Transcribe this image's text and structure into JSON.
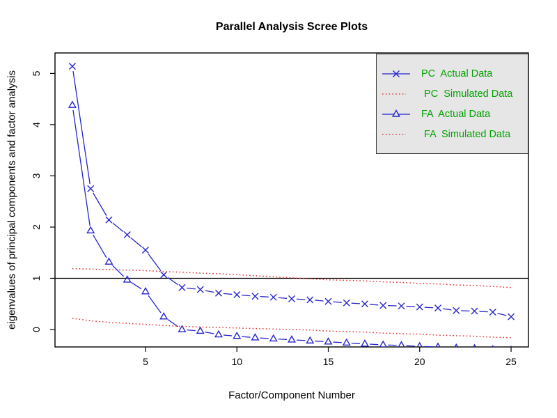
{
  "title": "Parallel Analysis Scree Plots",
  "colors": {
    "actual_line": "#2424cc",
    "simulated_line": "#e83333",
    "legend_text": "#00a300",
    "legend_bg": "#e6e6e6",
    "axis": "#000000",
    "reference_line": "#000000"
  },
  "chart_data": {
    "type": "line",
    "title": "Parallel Analysis Scree Plots",
    "xlabel": "Factor/Component Number",
    "ylabel": "eigenvalues of principal components and factor analysis",
    "xlim": [
      0.05,
      25.95
    ],
    "ylim": [
      -0.34,
      5.4
    ],
    "xticks": [
      5,
      10,
      15,
      20,
      25
    ],
    "yticks": [
      0,
      1,
      2,
      3,
      4,
      5
    ],
    "grid": false,
    "reference_line_y": 1,
    "legend_position": "top-right",
    "x": [
      1,
      2,
      3,
      4,
      5,
      6,
      7,
      8,
      9,
      10,
      11,
      12,
      13,
      14,
      15,
      16,
      17,
      18,
      19,
      20,
      21,
      22,
      23,
      24,
      25
    ],
    "series": [
      {
        "name": "PC Actual Data",
        "style": "solid-marker",
        "marker": "x",
        "color": "#2424cc",
        "values": [
          5.14,
          2.75,
          2.14,
          1.85,
          1.55,
          1.07,
          0.82,
          0.78,
          0.71,
          0.68,
          0.65,
          0.63,
          0.6,
          0.58,
          0.55,
          0.52,
          0.5,
          0.47,
          0.46,
          0.44,
          0.42,
          0.37,
          0.36,
          0.34,
          0.25
        ]
      },
      {
        "name": "PC Simulated Data",
        "style": "dotted",
        "marker": "none",
        "color": "#e83333",
        "values": [
          1.19,
          1.18,
          1.17,
          1.16,
          1.15,
          1.13,
          1.12,
          1.1,
          1.09,
          1.07,
          1.05,
          1.03,
          1.01,
          0.99,
          0.97,
          0.96,
          0.95,
          0.93,
          0.92,
          0.9,
          0.89,
          0.87,
          0.86,
          0.84,
          0.82
        ]
      },
      {
        "name": "FA Actual Data",
        "style": "solid-marker",
        "marker": "triangle",
        "color": "#2424cc",
        "values": [
          4.38,
          1.93,
          1.32,
          0.97,
          0.74,
          0.25,
          0.0,
          -0.03,
          -0.1,
          -0.13,
          -0.16,
          -0.18,
          -0.2,
          -0.22,
          -0.24,
          -0.26,
          -0.28,
          -0.3,
          -0.31,
          -0.33,
          -0.34,
          -0.36,
          -0.37,
          -0.39,
          -0.4
        ]
      },
      {
        "name": "FA Simulated Data",
        "style": "dotted",
        "marker": "none",
        "color": "#e83333",
        "values": [
          0.22,
          0.17,
          0.14,
          0.12,
          0.1,
          0.08,
          0.06,
          0.05,
          0.04,
          0.03,
          0.02,
          0.01,
          0.0,
          -0.01,
          -0.03,
          -0.04,
          -0.05,
          -0.07,
          -0.08,
          -0.09,
          -0.11,
          -0.12,
          -0.13,
          -0.15,
          -0.16
        ]
      }
    ]
  },
  "legend": {
    "items": [
      {
        "label": "PC  Actual Data",
        "sample": "blue-line-x"
      },
      {
        "label": " PC  Simulated Data",
        "sample": "red-dotted"
      },
      {
        "label": "FA  Actual Data",
        "sample": "blue-line-triangle"
      },
      {
        "label": " FA  Simulated Data",
        "sample": "red-dotted"
      }
    ]
  }
}
